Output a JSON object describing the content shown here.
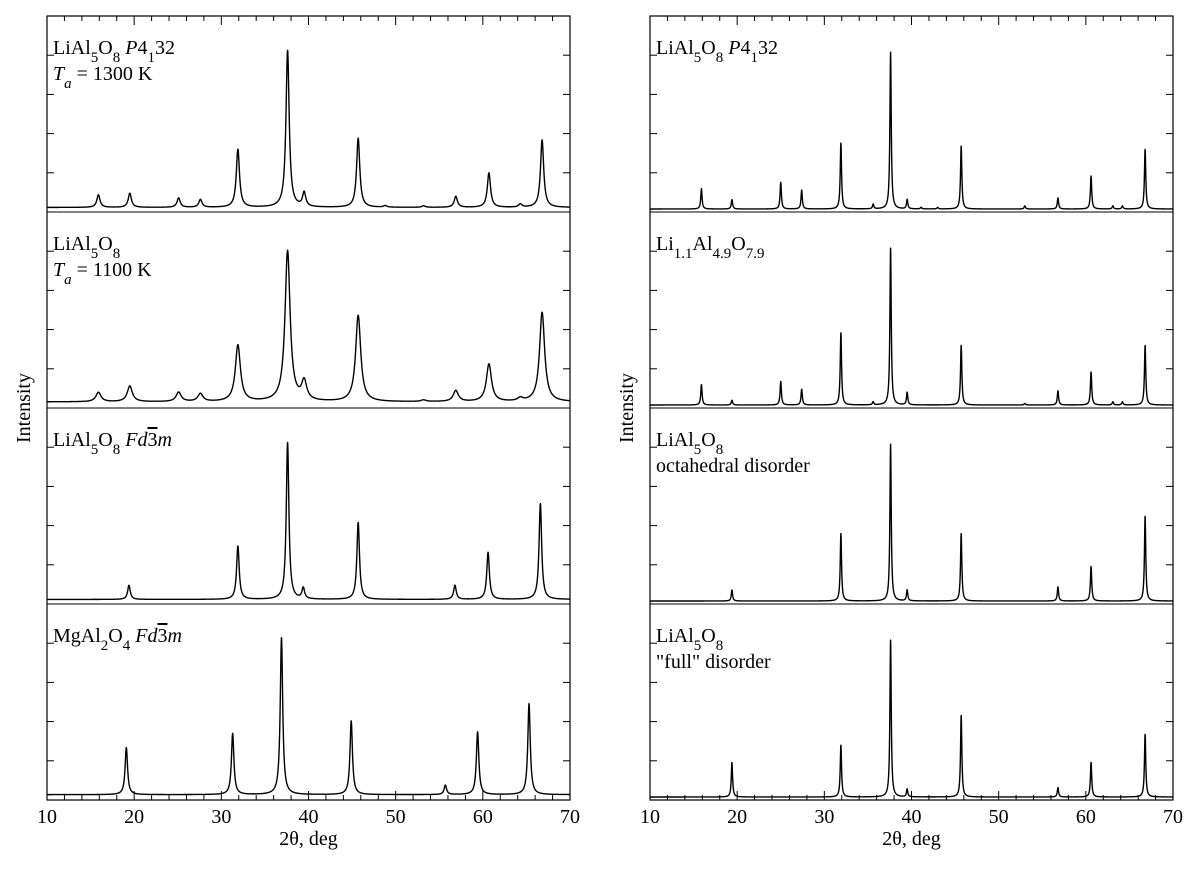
{
  "chart_data": [
    {
      "type": "line",
      "xlabel": "2θ, deg",
      "ylabel": "Intensity",
      "xlim": [
        10,
        70
      ],
      "xticks": [
        "10",
        "20",
        "30",
        "40",
        "50",
        "60",
        "70"
      ],
      "grid": false,
      "series": [
        {
          "label_lines": [
            [
              {
                "t": "LiAl"
              },
              {
                "t": "5",
                "sub": true
              },
              {
                "t": "O"
              },
              {
                "t": "8",
                "sub": true
              },
              {
                "t": " "
              },
              {
                "t": "P",
                "it": true
              },
              {
                "t": "4"
              },
              {
                "t": "1",
                "sub": true
              },
              {
                "t": "32"
              }
            ],
            [
              {
                "t": "T",
                "it": true
              },
              {
                "t": "a",
                "sub": true,
                "it": true
              },
              {
                "t": " = 1300 K"
              }
            ]
          ],
          "background": 0.01,
          "peak_width": 0.22,
          "peaks": [
            [
              15.9,
              0.08
            ],
            [
              19.5,
              0.09
            ],
            [
              25.1,
              0.06
            ],
            [
              27.6,
              0.05
            ],
            [
              31.9,
              0.37
            ],
            [
              37.6,
              1.0
            ],
            [
              39.5,
              0.09
            ],
            [
              45.7,
              0.44
            ],
            [
              48.8,
              0.01
            ],
            [
              53.2,
              0.01
            ],
            [
              56.9,
              0.07
            ],
            [
              60.7,
              0.22
            ],
            [
              64.3,
              0.02
            ],
            [
              66.8,
              0.43
            ]
          ]
        },
        {
          "label_lines": [
            [
              {
                "t": "LiAl"
              },
              {
                "t": "5",
                "sub": true
              },
              {
                "t": "O"
              },
              {
                "t": "8",
                "sub": true
              }
            ],
            [
              {
                "t": "T",
                "it": true
              },
              {
                "t": "a",
                "sub": true,
                "it": true
              },
              {
                "t": " = 1100 K"
              }
            ]
          ],
          "background": 0.02,
          "peak_width": 0.35,
          "peaks": [
            [
              15.9,
              0.06
            ],
            [
              19.5,
              0.1
            ],
            [
              25.1,
              0.06
            ],
            [
              27.6,
              0.05
            ],
            [
              31.9,
              0.36
            ],
            [
              37.6,
              0.96
            ],
            [
              39.5,
              0.12
            ],
            [
              45.7,
              0.55
            ],
            [
              53.2,
              0.01
            ],
            [
              56.9,
              0.07
            ],
            [
              60.7,
              0.24
            ],
            [
              64.3,
              0.02
            ],
            [
              66.8,
              0.57
            ]
          ]
        },
        {
          "label_lines": [
            [
              {
                "t": "LiAl"
              },
              {
                "t": "5",
                "sub": true
              },
              {
                "t": "O"
              },
              {
                "t": "8",
                "sub": true
              },
              {
                "t": " "
              },
              {
                "t": "Fd",
                "it": true
              },
              {
                "t": "3",
                "over": true
              },
              {
                "t": "m",
                "it": true
              }
            ]
          ],
          "background": 0.01,
          "peak_width": 0.18,
          "peaks": [
            [
              19.4,
              0.09
            ],
            [
              31.9,
              0.34
            ],
            [
              37.6,
              1.0
            ],
            [
              39.4,
              0.07
            ],
            [
              45.7,
              0.49
            ],
            [
              56.8,
              0.09
            ],
            [
              60.6,
              0.3
            ],
            [
              66.6,
              0.61
            ]
          ]
        },
        {
          "label_lines": [
            [
              {
                "t": "MgAl"
              },
              {
                "t": "2",
                "sub": true
              },
              {
                "t": "O"
              },
              {
                "t": "4",
                "sub": true
              },
              {
                "t": " "
              },
              {
                "t": "Fd",
                "it": true
              },
              {
                "t": "3",
                "over": true
              },
              {
                "t": "m",
                "it": true
              }
            ]
          ],
          "background": 0.015,
          "peak_width": 0.17,
          "peaks": [
            [
              19.1,
              0.3
            ],
            [
              31.3,
              0.39
            ],
            [
              36.9,
              1.0
            ],
            [
              44.9,
              0.47
            ],
            [
              55.7,
              0.06
            ],
            [
              59.4,
              0.4
            ],
            [
              65.3,
              0.58
            ]
          ]
        }
      ]
    },
    {
      "type": "line",
      "xlabel": "2θ, deg",
      "ylabel": "Intensity",
      "xlim": [
        10,
        70
      ],
      "xticks": [
        "10",
        "20",
        "30",
        "40",
        "50",
        "60",
        "70"
      ],
      "grid": false,
      "series": [
        {
          "label_lines": [
            [
              {
                "t": "LiAl"
              },
              {
                "t": "5",
                "sub": true
              },
              {
                "t": "O"
              },
              {
                "t": "8",
                "sub": true
              },
              {
                "t": " "
              },
              {
                "t": "P",
                "it": true
              },
              {
                "t": "4"
              },
              {
                "t": "1",
                "sub": true
              },
              {
                "t": "32"
              }
            ]
          ],
          "background": 0.0,
          "peak_width": 0.09,
          "peaks": [
            [
              15.9,
              0.13
            ],
            [
              19.4,
              0.06
            ],
            [
              25.0,
              0.17
            ],
            [
              27.4,
              0.12
            ],
            [
              31.9,
              0.42
            ],
            [
              35.6,
              0.03
            ],
            [
              37.6,
              1.0
            ],
            [
              39.5,
              0.06
            ],
            [
              41.1,
              0.01
            ],
            [
              43.0,
              0.01
            ],
            [
              45.7,
              0.4
            ],
            [
              53.0,
              0.02
            ],
            [
              56.8,
              0.07
            ],
            [
              60.6,
              0.21
            ],
            [
              63.1,
              0.02
            ],
            [
              64.2,
              0.02
            ],
            [
              66.8,
              0.38
            ]
          ]
        },
        {
          "label_lines": [
            [
              {
                "t": "Li"
              },
              {
                "t": "1.1",
                "sub": true
              },
              {
                "t": "Al"
              },
              {
                "t": "4.9",
                "sub": true
              },
              {
                "t": "O"
              },
              {
                "t": "7.9",
                "sub": true
              }
            ]
          ],
          "background": 0.0,
          "peak_width": 0.09,
          "peaks": [
            [
              15.9,
              0.13
            ],
            [
              19.4,
              0.03
            ],
            [
              25.0,
              0.15
            ],
            [
              27.4,
              0.1
            ],
            [
              31.9,
              0.46
            ],
            [
              35.6,
              0.02
            ],
            [
              37.6,
              1.0
            ],
            [
              39.5,
              0.08
            ],
            [
              45.7,
              0.38
            ],
            [
              53.0,
              0.01
            ],
            [
              56.8,
              0.09
            ],
            [
              60.6,
              0.21
            ],
            [
              63.1,
              0.02
            ],
            [
              64.2,
              0.02
            ],
            [
              66.8,
              0.38
            ]
          ]
        },
        {
          "label_lines": [
            [
              {
                "t": "LiAl"
              },
              {
                "t": "5",
                "sub": true
              },
              {
                "t": "O"
              },
              {
                "t": "8",
                "sub": true
              }
            ],
            [
              {
                "t": "octahedral disorder"
              }
            ]
          ],
          "background": 0.0,
          "peak_width": 0.09,
          "peaks": [
            [
              19.4,
              0.07
            ],
            [
              31.9,
              0.43
            ],
            [
              37.6,
              1.0
            ],
            [
              39.5,
              0.07
            ],
            [
              45.7,
              0.43
            ],
            [
              56.8,
              0.09
            ],
            [
              60.6,
              0.22
            ],
            [
              66.8,
              0.54
            ]
          ]
        },
        {
          "label_lines": [
            [
              {
                "t": "LiAl"
              },
              {
                "t": "5",
                "sub": true
              },
              {
                "t": "O"
              },
              {
                "t": "8",
                "sub": true
              }
            ],
            [
              {
                "t": "\"full\" disorder"
              }
            ]
          ],
          "background": 0.0,
          "peak_width": 0.09,
          "peaks": [
            [
              19.4,
              0.22
            ],
            [
              31.9,
              0.33
            ],
            [
              37.6,
              1.0
            ],
            [
              39.5,
              0.05
            ],
            [
              45.7,
              0.52
            ],
            [
              56.8,
              0.06
            ],
            [
              60.6,
              0.22
            ],
            [
              66.8,
              0.4
            ]
          ]
        }
      ]
    }
  ]
}
